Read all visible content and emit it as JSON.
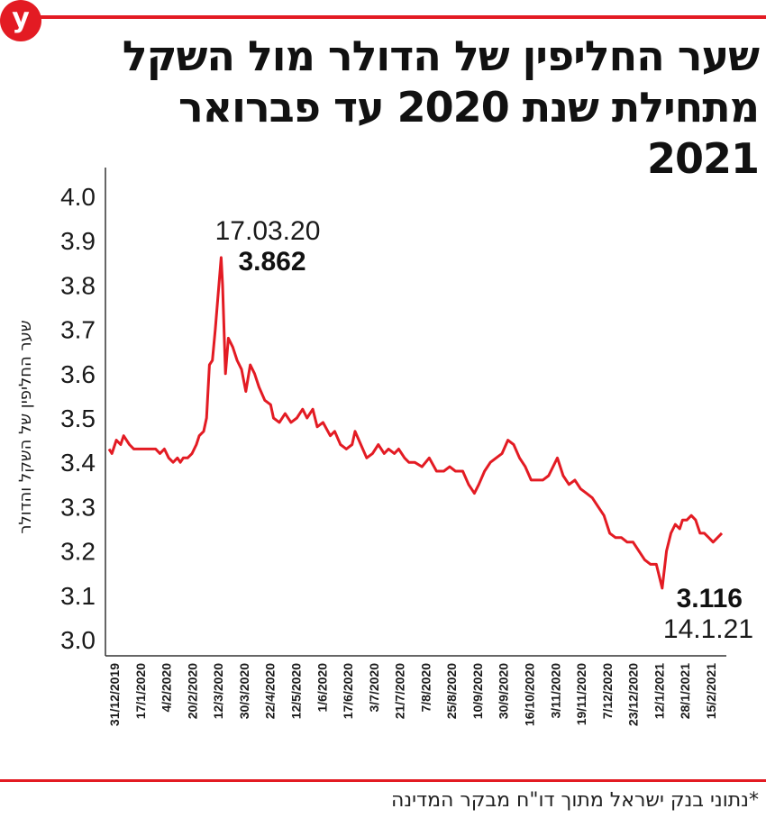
{
  "brand": {
    "logo_letter": "y",
    "accent": "#e31b23"
  },
  "title": "שער החליפין של הדולר מול השקל מתחילת שנת 2020 עד פברואר 2021",
  "footnote": "*נתוני בנק ישראל מתוך דו\"ח מבקר המדינה",
  "chart_data": {
    "type": "line",
    "title": "שער החליפין של הדולר מול השקל מתחילת שנת 2020 עד פברואר 2021",
    "ylabel": "שער החליפין של השקל והדולר",
    "xlabel": "",
    "ylim": [
      3.0,
      4.0
    ],
    "yticks": [
      "3.0",
      "3.1",
      "3.2",
      "3.3",
      "3.4",
      "3.5",
      "3.6",
      "3.7",
      "3.8",
      "3.9",
      "4.0"
    ],
    "xticks": [
      "31/12/2019",
      "17/1/2020",
      "4/2/2020",
      "20/2/2020",
      "12/3/2020",
      "30/3/2020",
      "22/4/2020",
      "12/5/2020",
      "1/6/2020",
      "17/6/2020",
      "3/7/2020",
      "21/7/2020",
      "7/8/2020",
      "25/8/2020",
      "10/9/2020",
      "30/9/2020",
      "16/10/2020",
      "3/11/2020",
      "19/11/2020",
      "7/12/2020",
      "23/12/2020",
      "12/1/2021",
      "28/1/2021",
      "15/2/2021"
    ],
    "grid": false,
    "line_color": "#e31b23",
    "series": [
      {
        "x": [
          "2019-12-31",
          "2020-01-02",
          "2020-01-05",
          "2020-01-08",
          "2020-01-10",
          "2020-01-14",
          "2020-01-17",
          "2020-01-22",
          "2020-01-27",
          "2020-02-01",
          "2020-02-04",
          "2020-02-07",
          "2020-02-10",
          "2020-02-13",
          "2020-02-16",
          "2020-02-18",
          "2020-02-20",
          "2020-02-23",
          "2020-02-26",
          "2020-02-29",
          "2020-03-02",
          "2020-03-05",
          "2020-03-07",
          "2020-03-09",
          "2020-03-11",
          "2020-03-13",
          "2020-03-15",
          "2020-03-17",
          "2020-03-18",
          "2020-03-20",
          "2020-03-22",
          "2020-03-25",
          "2020-03-28",
          "2020-03-31",
          "2020-04-03",
          "2020-04-06",
          "2020-04-09",
          "2020-04-12",
          "2020-04-16",
          "2020-04-20",
          "2020-04-22",
          "2020-04-26",
          "2020-04-30",
          "2020-05-04",
          "2020-05-08",
          "2020-05-12",
          "2020-05-15",
          "2020-05-19",
          "2020-05-22",
          "2020-05-26",
          "2020-05-31",
          "2020-06-03",
          "2020-06-07",
          "2020-06-11",
          "2020-06-15",
          "2020-06-17",
          "2020-06-21",
          "2020-06-25",
          "2020-06-29",
          "2020-07-03",
          "2020-07-07",
          "2020-07-10",
          "2020-07-14",
          "2020-07-17",
          "2020-07-21",
          "2020-07-24",
          "2020-07-28",
          "2020-08-02",
          "2020-08-07",
          "2020-08-12",
          "2020-08-17",
          "2020-08-21",
          "2020-08-25",
          "2020-08-30",
          "2020-09-03",
          "2020-09-07",
          "2020-09-10",
          "2020-09-14",
          "2020-09-18",
          "2020-09-22",
          "2020-09-26",
          "2020-09-30",
          "2020-10-04",
          "2020-10-08",
          "2020-10-12",
          "2020-10-16",
          "2020-10-20",
          "2020-10-24",
          "2020-10-28",
          "2020-11-03",
          "2020-11-07",
          "2020-11-11",
          "2020-11-15",
          "2020-11-19",
          "2020-11-23",
          "2020-11-27",
          "2020-12-01",
          "2020-12-05",
          "2020-12-09",
          "2020-12-13",
          "2020-12-17",
          "2020-12-21",
          "2020-12-25",
          "2020-12-29",
          "2021-01-02",
          "2021-01-06",
          "2021-01-10",
          "2021-01-14",
          "2021-01-17",
          "2021-01-20",
          "2021-01-23",
          "2021-01-26",
          "2021-01-28",
          "2021-01-31",
          "2021-02-03",
          "2021-02-06",
          "2021-02-09",
          "2021-02-12",
          "2021-02-15",
          "2021-02-18",
          "2021-02-21",
          "2021-02-24"
        ],
        "y": [
          3.43,
          3.42,
          3.45,
          3.44,
          3.46,
          3.44,
          3.43,
          3.43,
          3.43,
          3.43,
          3.42,
          3.43,
          3.41,
          3.4,
          3.41,
          3.4,
          3.41,
          3.41,
          3.42,
          3.44,
          3.46,
          3.47,
          3.5,
          3.62,
          3.63,
          3.7,
          3.78,
          3.862,
          3.8,
          3.6,
          3.68,
          3.66,
          3.63,
          3.61,
          3.56,
          3.62,
          3.6,
          3.57,
          3.54,
          3.53,
          3.5,
          3.49,
          3.51,
          3.49,
          3.5,
          3.52,
          3.5,
          3.52,
          3.48,
          3.49,
          3.46,
          3.47,
          3.44,
          3.43,
          3.44,
          3.47,
          3.44,
          3.41,
          3.42,
          3.44,
          3.42,
          3.43,
          3.42,
          3.43,
          3.41,
          3.4,
          3.4,
          3.39,
          3.41,
          3.38,
          3.38,
          3.39,
          3.38,
          3.38,
          3.35,
          3.33,
          3.35,
          3.38,
          3.4,
          3.41,
          3.42,
          3.45,
          3.44,
          3.41,
          3.39,
          3.36,
          3.36,
          3.36,
          3.37,
          3.41,
          3.37,
          3.35,
          3.36,
          3.34,
          3.33,
          3.32,
          3.3,
          3.28,
          3.24,
          3.23,
          3.23,
          3.22,
          3.22,
          3.2,
          3.18,
          3.17,
          3.17,
          3.116,
          3.2,
          3.24,
          3.26,
          3.25,
          3.27,
          3.27,
          3.28,
          3.27,
          3.24,
          3.24,
          3.23,
          3.22,
          3.23,
          3.24
        ]
      }
    ],
    "annotations": [
      {
        "date_label": "17.03.20",
        "value_label": "3.862",
        "x": "2020-03-17",
        "y": 3.862
      },
      {
        "date_label": "14.1.21",
        "value_label": "3.116",
        "x": "2021-01-14",
        "y": 3.116
      }
    ]
  }
}
